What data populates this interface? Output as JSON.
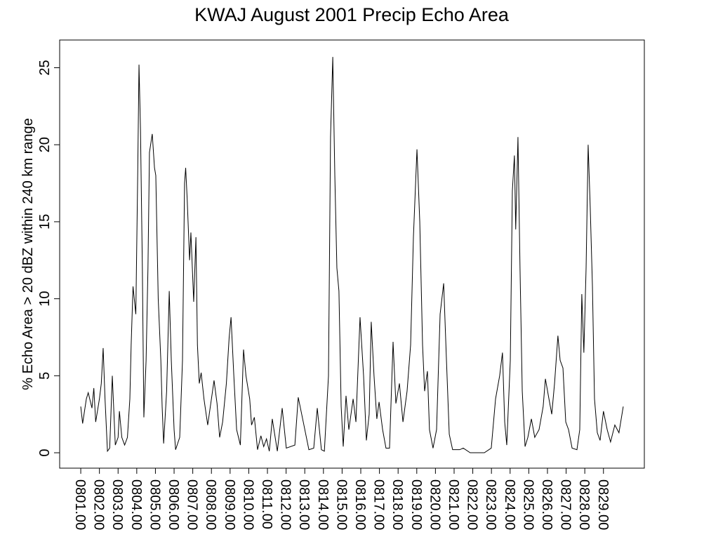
{
  "chart_data": {
    "type": "line",
    "title": "KWAJ August 2001 Precip Echo Area",
    "y_label": "% Echo Area > 20 dBZ within 240 km range",
    "xlim": [
      799.87,
      831.19
    ],
    "ylim": [
      -1,
      26.8
    ],
    "yticks": [
      0,
      5,
      10,
      15,
      20,
      25
    ],
    "xticks": [
      {
        "value": 801,
        "label": "0801.00"
      },
      {
        "value": 802,
        "label": "0802.00"
      },
      {
        "value": 803,
        "label": "0803.00"
      },
      {
        "value": 804,
        "label": "0804.00"
      },
      {
        "value": 805,
        "label": "0805.00"
      },
      {
        "value": 806,
        "label": "0806.00"
      },
      {
        "value": 807,
        "label": "0807.00"
      },
      {
        "value": 808,
        "label": "0808.00"
      },
      {
        "value": 809,
        "label": "0809.00"
      },
      {
        "value": 810,
        "label": "0810.00"
      },
      {
        "value": 811,
        "label": "0811.00"
      },
      {
        "value": 812,
        "label": "0812.00"
      },
      {
        "value": 813,
        "label": "0813.00"
      },
      {
        "value": 814,
        "label": "0814.00"
      },
      {
        "value": 815,
        "label": "0815.00"
      },
      {
        "value": 816,
        "label": "0816.00"
      },
      {
        "value": 817,
        "label": "0817.00"
      },
      {
        "value": 818,
        "label": "0818.00"
      },
      {
        "value": 819,
        "label": "0819.00"
      },
      {
        "value": 820,
        "label": "0820.00"
      },
      {
        "value": 821,
        "label": "0821.00"
      },
      {
        "value": 822,
        "label": "0822.00"
      },
      {
        "value": 823,
        "label": "0823.00"
      },
      {
        "value": 824,
        "label": "0824.00"
      },
      {
        "value": 825,
        "label": "0825.00"
      },
      {
        "value": 826,
        "label": "0826.00"
      },
      {
        "value": 827,
        "label": "0827.00"
      },
      {
        "value": 828,
        "label": "0828.00"
      },
      {
        "value": 829,
        "label": "0829.00"
      }
    ],
    "x": [
      801.0,
      801.1,
      801.3,
      801.4,
      801.6,
      801.7,
      801.8,
      802.0,
      802.1,
      802.2,
      802.3,
      802.43,
      802.55,
      802.69,
      802.85,
      803.0,
      803.07,
      803.2,
      803.35,
      803.5,
      803.63,
      803.7,
      803.8,
      803.95,
      804.05,
      804.12,
      804.2,
      804.3,
      804.38,
      804.5,
      804.6,
      804.68,
      804.83,
      804.95,
      805.02,
      805.15,
      805.29,
      805.36,
      805.44,
      805.6,
      805.74,
      805.85,
      806.0,
      806.08,
      806.3,
      806.45,
      806.56,
      806.62,
      806.7,
      806.83,
      806.9,
      807.05,
      807.17,
      807.25,
      807.35,
      807.45,
      807.6,
      807.8,
      808.0,
      808.14,
      808.3,
      808.44,
      808.6,
      808.8,
      808.95,
      809.05,
      809.2,
      809.35,
      809.55,
      809.72,
      809.85,
      810.05,
      810.15,
      810.3,
      810.47,
      810.65,
      810.8,
      810.95,
      811.1,
      811.26,
      811.53,
      811.79,
      812.01,
      812.47,
      812.65,
      812.92,
      813.22,
      813.48,
      813.67,
      813.89,
      814.05,
      814.27,
      814.38,
      814.5,
      814.61,
      814.72,
      814.83,
      814.95,
      815.06,
      815.21,
      815.36,
      815.59,
      815.74,
      815.96,
      816.15,
      816.3,
      816.45,
      816.56,
      816.71,
      816.86,
      816.98,
      817.17,
      817.35,
      817.54,
      817.73,
      817.88,
      818.07,
      818.26,
      818.48,
      818.67,
      818.82,
      819.01,
      819.16,
      819.31,
      819.42,
      819.57,
      819.68,
      819.87,
      820.06,
      820.25,
      820.44,
      820.59,
      820.74,
      820.92,
      821.3,
      821.49,
      821.86,
      822.62,
      822.99,
      823.22,
      823.44,
      823.59,
      823.71,
      823.82,
      824.01,
      824.12,
      824.23,
      824.3,
      824.42,
      824.53,
      824.65,
      824.8,
      824.95,
      825.14,
      825.32,
      825.55,
      825.77,
      825.89,
      826.08,
      826.23,
      826.38,
      826.56,
      826.68,
      826.83,
      826.98,
      827.13,
      827.32,
      827.58,
      827.73,
      827.84,
      827.95,
      828.07,
      828.18,
      828.29,
      828.41,
      828.52,
      828.67,
      828.82,
      829.0,
      829.2,
      829.38,
      829.61,
      829.83,
      830.06
    ],
    "series": [
      {
        "name": "Echo Area",
        "color": "#000000",
        "values": [
          3.0,
          1.9,
          3.5,
          3.9,
          2.9,
          4.2,
          2.0,
          3.5,
          4.5,
          6.8,
          3.5,
          0.1,
          0.3,
          5.0,
          0.5,
          1.0,
          2.7,
          1.0,
          0.5,
          1.0,
          3.5,
          7.0,
          10.8,
          9.0,
          18.0,
          25.2,
          21.0,
          12.0,
          2.3,
          6.0,
          12.0,
          19.5,
          20.7,
          18.5,
          18.0,
          10.0,
          6.0,
          3.0,
          0.6,
          4.0,
          10.5,
          6.0,
          1.5,
          0.2,
          1.0,
          6.0,
          17.5,
          18.5,
          16.5,
          12.5,
          14.3,
          9.8,
          14.0,
          7.0,
          4.5,
          5.2,
          3.5,
          1.8,
          3.5,
          4.7,
          3.2,
          1.0,
          2.0,
          4.5,
          7.5,
          8.8,
          5.0,
          1.5,
          0.5,
          6.7,
          5.0,
          3.5,
          1.8,
          2.3,
          0.2,
          1.1,
          0.4,
          0.9,
          0.1,
          2.2,
          0.1,
          2.9,
          0.3,
          0.5,
          3.6,
          2.0,
          0.2,
          0.3,
          2.9,
          0.2,
          0.1,
          5.0,
          20.5,
          25.7,
          18.0,
          12.0,
          10.5,
          3.0,
          0.4,
          3.7,
          1.5,
          3.5,
          2.0,
          8.8,
          5.0,
          0.8,
          2.5,
          8.5,
          5.0,
          2.2,
          3.3,
          1.5,
          0.3,
          0.3,
          7.2,
          3.2,
          4.5,
          2.0,
          4.0,
          7.0,
          14.0,
          19.7,
          15.0,
          7.0,
          4.0,
          5.3,
          1.5,
          0.3,
          1.5,
          9.0,
          11.0,
          6.0,
          1.2,
          0.2,
          0.2,
          0.3,
          0.0,
          0.0,
          0.3,
          3.5,
          5.0,
          6.5,
          2.0,
          0.5,
          6.0,
          17.0,
          19.3,
          14.5,
          20.5,
          12.0,
          4.0,
          0.4,
          1.0,
          2.2,
          1.0,
          1.5,
          3.0,
          4.8,
          3.5,
          2.5,
          4.5,
          7.6,
          6.0,
          5.5,
          2.0,
          1.5,
          0.3,
          0.2,
          1.5,
          10.3,
          6.5,
          12.0,
          20.0,
          16.0,
          10.8,
          3.5,
          1.3,
          0.8,
          2.7,
          1.5,
          0.7,
          1.8,
          1.3,
          3.0
        ]
      }
    ]
  }
}
